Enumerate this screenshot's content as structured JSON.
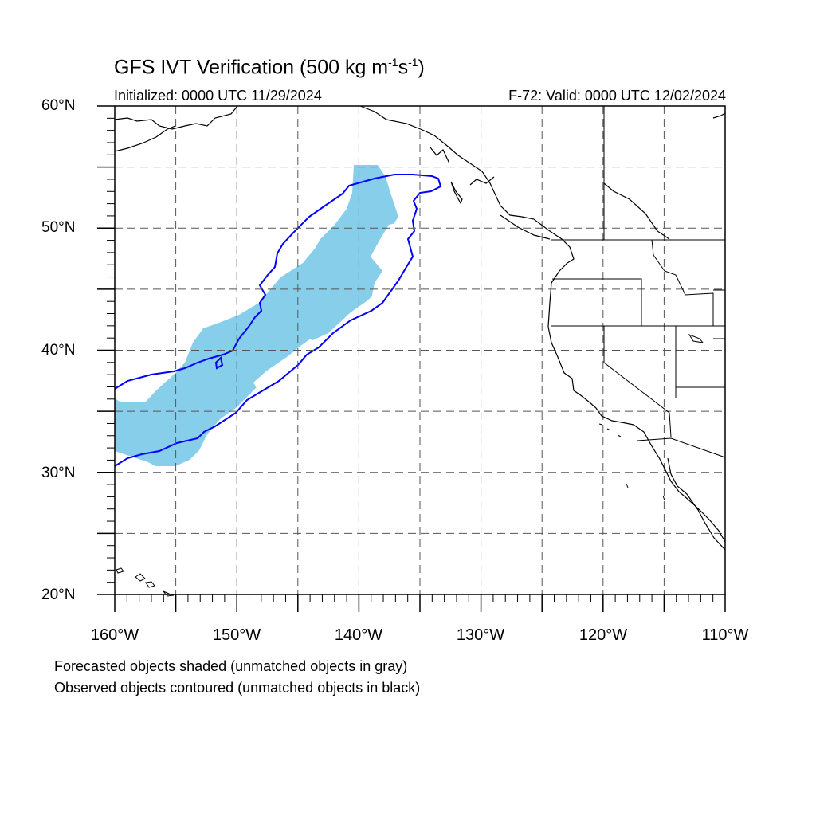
{
  "title": {
    "prefix": "GFS IVT Verification (500 kg m",
    "sup1": "-1",
    "mid": "s",
    "sup2": "-1",
    "suffix": ")"
  },
  "initialized": "Initialized: 0000 UTC 11/29/2024",
  "valid": "F-72: Valid: 0000 UTC 12/02/2024",
  "lat_labels": [
    "60°N",
    "50°N",
    "40°N",
    "30°N",
    "20°N"
  ],
  "lon_labels": [
    "160°W",
    "150°W",
    "140°W",
    "130°W",
    "120°W",
    "110°W"
  ],
  "legend": {
    "line1": "Forecasted objects shaded (unmatched objects in gray)",
    "line2": "Observed objects contoured (unmatched objects in black)"
  },
  "map": {
    "lon_range": [
      -160,
      -110
    ],
    "lat_range": [
      20,
      60
    ],
    "grid_spacing_deg": 5,
    "gridlines": "dashed",
    "colors": {
      "forecast_fill": "#87ceeb",
      "observed_contour": "#0000ff",
      "coastline": "#000000",
      "gridline": "#555555"
    }
  }
}
